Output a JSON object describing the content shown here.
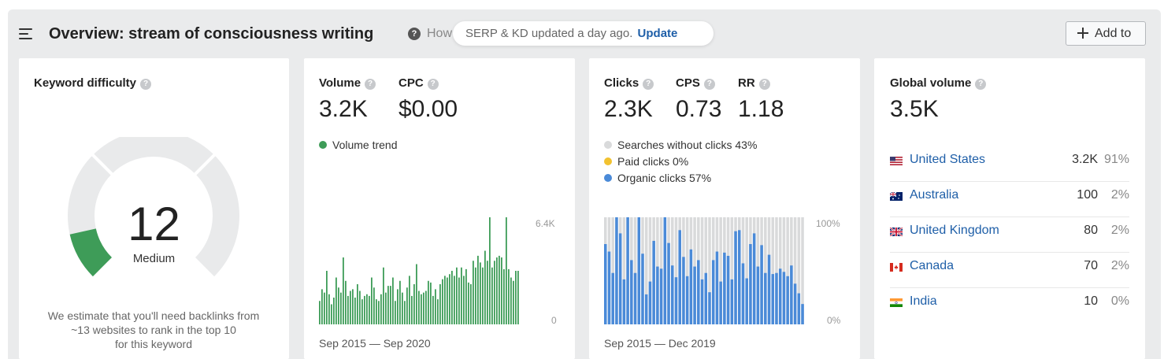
{
  "header": {
    "title": "Overview: stream of consciousness writing",
    "how_truncated": "How",
    "serp_notice": "SERP & KD updated a day ago.",
    "update_link": "Update",
    "add_to_label": "Add to"
  },
  "kd": {
    "label": "Keyword difficulty",
    "value": "12",
    "level": "Medium",
    "fill_fraction": 0.12,
    "gauge_fill_color": "#3e9c58",
    "gauge_track_color": "#e9eaeb",
    "estimate_line1": "We estimate that you'll need backlinks from",
    "estimate_line2": "~13 websites to rank in the top 10",
    "estimate_line3": "for this keyword"
  },
  "volume_card": {
    "volume_label": "Volume",
    "volume_value": "3.2K",
    "cpc_label": "CPC",
    "cpc_value": "$0.00",
    "trend_legend": "Volume trend",
    "trend_color": "#3e9c58",
    "y_max_label": "6.4K",
    "y_min_label": "0",
    "date_range": "Sep 2015 — Sep 2020"
  },
  "clicks_card": {
    "clicks_label": "Clicks",
    "clicks_value": "2.3K",
    "cps_label": "CPS",
    "cps_value": "0.73",
    "rr_label": "RR",
    "rr_value": "1.18",
    "legend": [
      {
        "label": "Searches without clicks 43%",
        "color": "#d9dadb"
      },
      {
        "label": "Paid clicks 0%",
        "color": "#f2c230"
      },
      {
        "label": "Organic clicks 57%",
        "color": "#4a8ad8"
      }
    ],
    "y_max_label": "100%",
    "y_min_label": "0%",
    "date_range": "Sep 2015 — Dec 2019"
  },
  "global_card": {
    "label": "Global volume",
    "value": "3.5K",
    "countries": [
      {
        "name": "United States",
        "volume": "3.2K",
        "pct": "91%",
        "flag": "us-flag-icon"
      },
      {
        "name": "Australia",
        "volume": "100",
        "pct": "2%",
        "flag": "au-flag-icon"
      },
      {
        "name": "United Kingdom",
        "volume": "80",
        "pct": "2%",
        "flag": "uk-flag-icon"
      },
      {
        "name": "Canada",
        "volume": "70",
        "pct": "2%",
        "flag": "ca-flag-icon"
      },
      {
        "name": "India",
        "volume": "10",
        "pct": "0%",
        "flag": "in-flag-icon"
      }
    ]
  },
  "chart_data": [
    {
      "type": "bar",
      "ylim": [
        0,
        6400
      ],
      "values": [
        1400,
        2100,
        1900,
        3200,
        1800,
        1200,
        1600,
        2800,
        2200,
        1900,
        4000,
        2600,
        1700,
        2000,
        2100,
        1600,
        2400,
        2000,
        1500,
        1700,
        1800,
        1700,
        2800,
        2200,
        1500,
        1400,
        1800,
        3400,
        1900,
        2300,
        2300,
        2800,
        1400,
        2100,
        2600,
        1900,
        1400,
        2200,
        2900,
        1700,
        2400,
        3600,
        2000,
        1800,
        1900,
        2000,
        2600,
        2500,
        1700,
        2100,
        1500,
        2400,
        2700,
        2900,
        2800,
        3000,
        3200,
        2900,
        3400,
        2800,
        3400,
        2900,
        3300,
        2500,
        2400,
        3800,
        3400,
        4100,
        3700,
        3400,
        4400,
        3800,
        6400,
        3400,
        3800,
        4000,
        4100,
        4000,
        3300,
        6500,
        3300,
        2800,
        2600,
        3200,
        3200
      ]
    },
    {
      "type": "bar",
      "ylim": [
        0,
        100
      ],
      "values": [
        75,
        68,
        48,
        100,
        85,
        42,
        100,
        60,
        48,
        100,
        66,
        28,
        40,
        78,
        54,
        52,
        100,
        76,
        55,
        44,
        88,
        63,
        45,
        70,
        54,
        60,
        42,
        48,
        30,
        60,
        68,
        40,
        67,
        64,
        42,
        87,
        88,
        57,
        43,
        75,
        85,
        54,
        74,
        48,
        65,
        47,
        48,
        52,
        49,
        45,
        55,
        38,
        29,
        19
      ]
    }
  ]
}
